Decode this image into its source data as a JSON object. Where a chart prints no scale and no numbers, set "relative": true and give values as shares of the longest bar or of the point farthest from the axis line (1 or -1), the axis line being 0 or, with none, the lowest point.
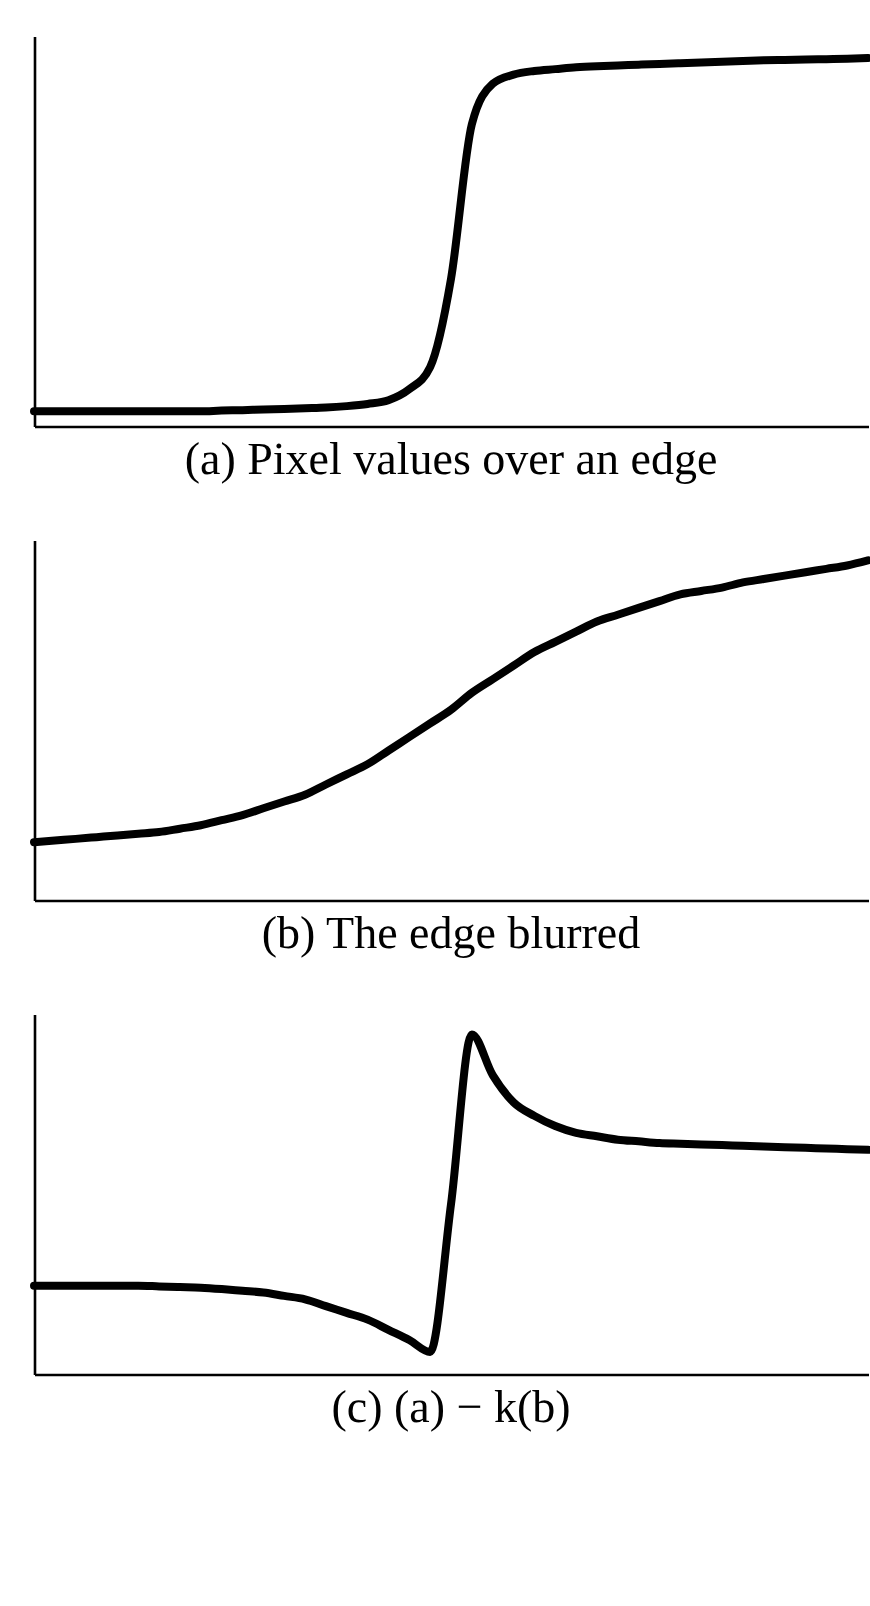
{
  "chart_data": [
    {
      "type": "line",
      "title": "(a) Pixel values over an edge",
      "relative": true,
      "grid": false,
      "legend": false,
      "marker": "none",
      "line_style": "solid",
      "categories": [
        null,
        null,
        null,
        null,
        null,
        null,
        null,
        null,
        null,
        null,
        null,
        null,
        null,
        null,
        null,
        null,
        null,
        null,
        null,
        null,
        null,
        null,
        null,
        null,
        null,
        null,
        null,
        null,
        null,
        null,
        null,
        null,
        null,
        null,
        null,
        null,
        null,
        null,
        null,
        null,
        null
      ],
      "series": [
        {
          "color": "#000000",
          "values": [
            0.04,
            0.04,
            0.04,
            0.04,
            0.04,
            0.04,
            0.04,
            0.04,
            0.04,
            0.042,
            0.043,
            0.045,
            0.046,
            0.048,
            0.05,
            0.054,
            0.06,
            0.07,
            0.1,
            0.16,
            0.4,
            0.82,
            0.93,
            0.955,
            0.965,
            0.97,
            0.975,
            0.978,
            0.98,
            0.982,
            0.984,
            0.986,
            0.988,
            0.99,
            0.992,
            0.994,
            0.995,
            0.996,
            0.997,
            0.998,
            1.0
          ]
        }
      ]
    },
    {
      "type": "line",
      "title": "(b) The edge blurred",
      "relative": true,
      "grid": false,
      "legend": false,
      "marker": "none",
      "line_style": "solid",
      "categories": [
        null,
        null,
        null,
        null,
        null,
        null,
        null,
        null,
        null,
        null,
        null,
        null,
        null,
        null,
        null,
        null,
        null,
        null,
        null,
        null,
        null,
        null,
        null,
        null,
        null,
        null,
        null,
        null,
        null,
        null,
        null,
        null,
        null,
        null,
        null,
        null,
        null,
        null,
        null,
        null,
        null
      ],
      "series": [
        {
          "color": "#000000",
          "values": [
            0.17,
            0.175,
            0.18,
            0.185,
            0.19,
            0.195,
            0.2,
            0.21,
            0.22,
            0.235,
            0.25,
            0.27,
            0.29,
            0.31,
            0.34,
            0.37,
            0.4,
            0.44,
            0.48,
            0.52,
            0.56,
            0.61,
            0.65,
            0.69,
            0.73,
            0.76,
            0.79,
            0.82,
            0.84,
            0.86,
            0.88,
            0.9,
            0.91,
            0.92,
            0.935,
            0.945,
            0.955,
            0.965,
            0.975,
            0.985,
            1.0
          ]
        }
      ]
    },
    {
      "type": "line",
      "title": "(c) (a) − k(b)",
      "relative": true,
      "grid": false,
      "legend": false,
      "marker": "none",
      "line_style": "solid",
      "categories": [
        null,
        null,
        null,
        null,
        null,
        null,
        null,
        null,
        null,
        null,
        null,
        null,
        null,
        null,
        null,
        null,
        null,
        null,
        null,
        null,
        null,
        null,
        null,
        null,
        null,
        null,
        null,
        null,
        null,
        null,
        null,
        null,
        null,
        null,
        null,
        null,
        null,
        null,
        null,
        null,
        null
      ],
      "series": [
        {
          "color": "#000000",
          "values": [
            0.26,
            0.26,
            0.26,
            0.26,
            0.26,
            0.26,
            0.258,
            0.256,
            0.254,
            0.25,
            0.245,
            0.24,
            0.23,
            0.22,
            0.2,
            0.18,
            0.16,
            0.13,
            0.1,
            0.065,
            0.5,
            1.0,
            0.88,
            0.8,
            0.76,
            0.73,
            0.71,
            0.7,
            0.69,
            0.685,
            0.68,
            0.678,
            0.676,
            0.674,
            0.672,
            0.67,
            0.668,
            0.666,
            0.664,
            0.662,
            0.66
          ]
        }
      ]
    }
  ]
}
